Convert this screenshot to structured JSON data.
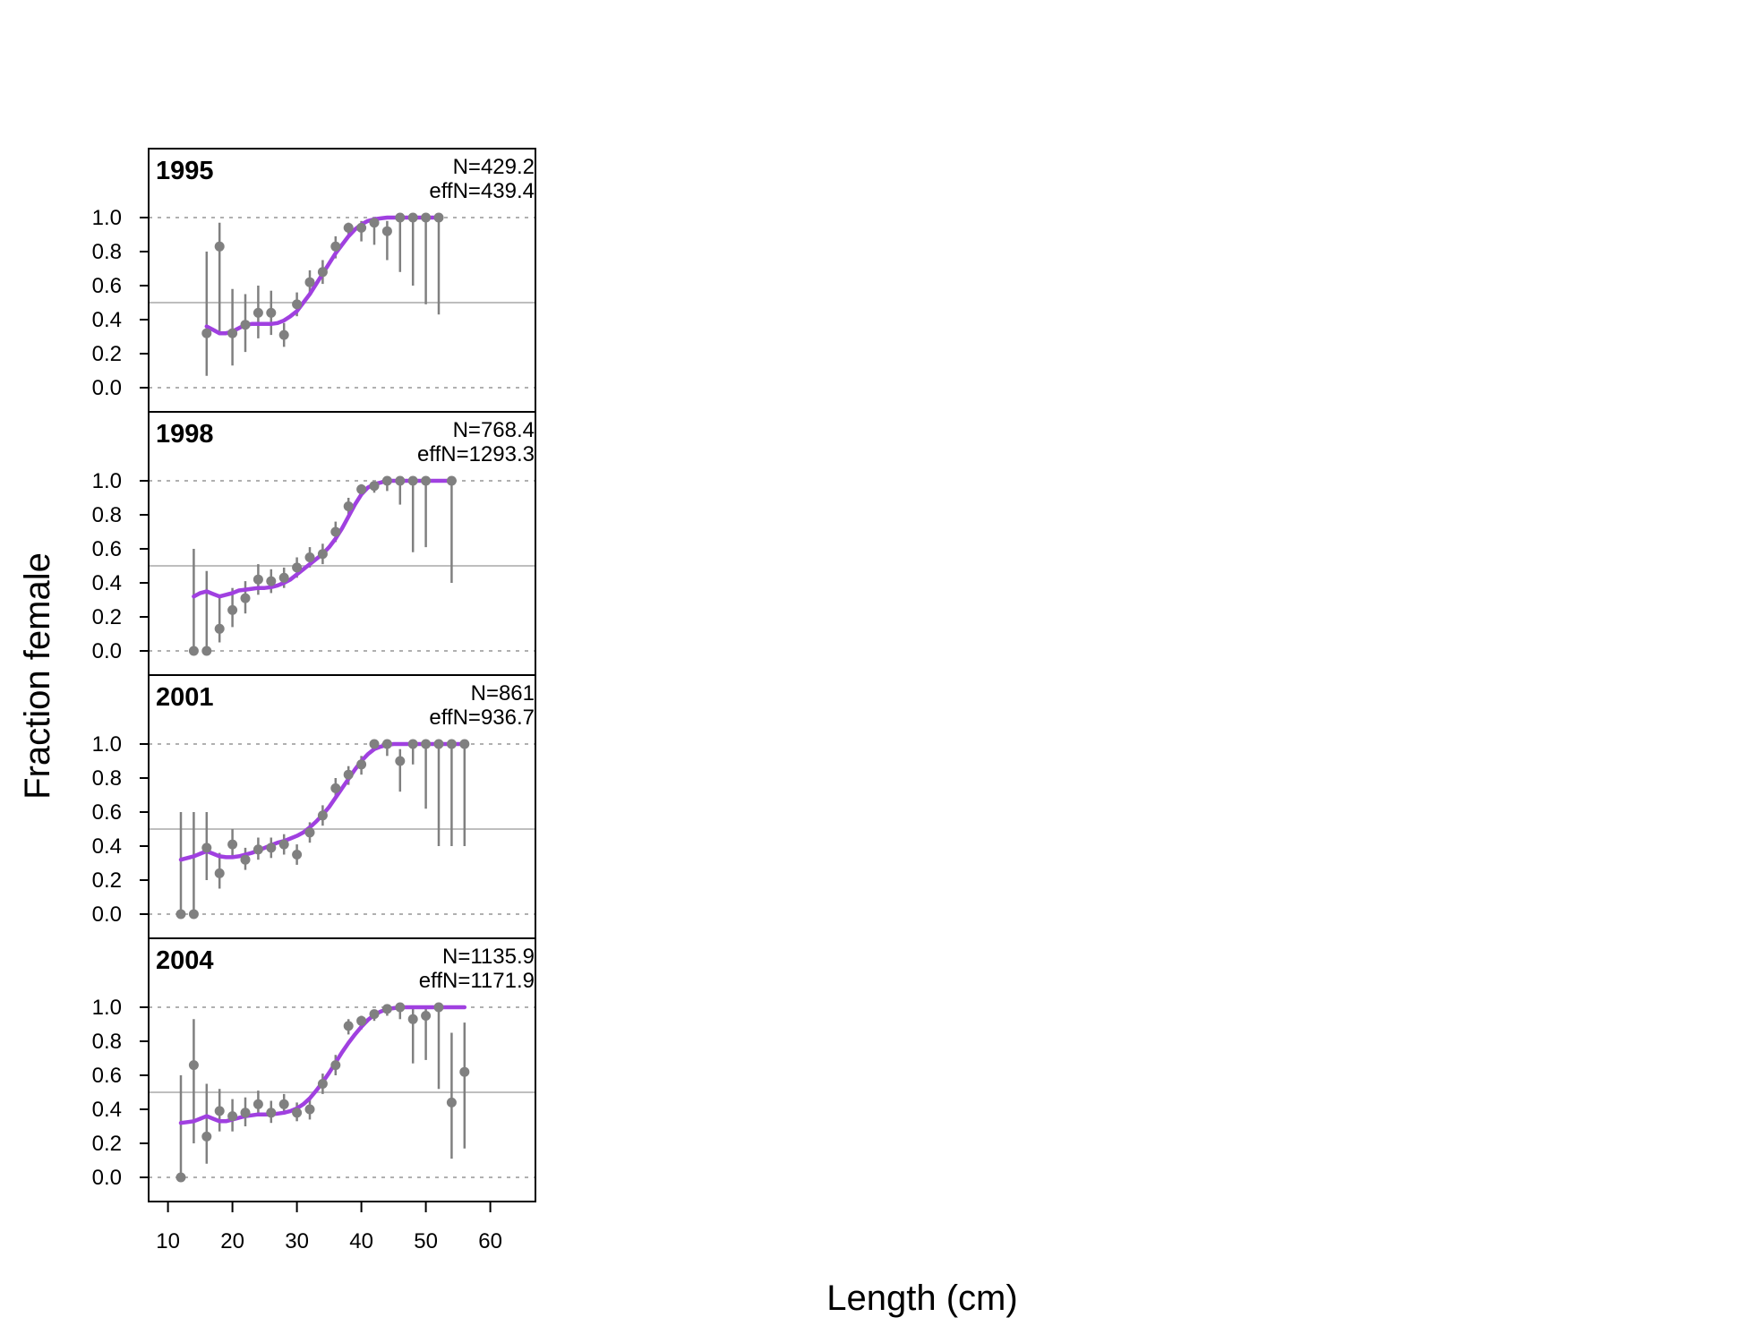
{
  "chart_data": {
    "type": "scatter",
    "xlabel": "Length (cm)",
    "ylabel": "Fraction female",
    "xlim": [
      7,
      67
    ],
    "ylim": [
      -0.15,
      1.4
    ],
    "x_ticks": [
      10,
      20,
      30,
      40,
      50,
      60
    ],
    "y_ticks": [
      0.0,
      0.2,
      0.4,
      0.6,
      0.8,
      1.0
    ],
    "y_tick_labels": [
      "0.0",
      "0.2",
      "0.4",
      "0.6",
      "0.8",
      "1.0"
    ],
    "reference_line": 0.5,
    "grid_lines": [
      0.0,
      1.0
    ],
    "colors": {
      "observed": "#808080",
      "expected": "#a040e0",
      "reference": "#bebebe",
      "grid": "#b0b0b0"
    },
    "panels": [
      {
        "year": "1995",
        "n_label": "N=429.2",
        "effn_label": "effN=439.4",
        "observed": [
          {
            "x": 16,
            "y": 0.32,
            "lo": 0.07,
            "hi": 0.8
          },
          {
            "x": 18,
            "y": 0.83,
            "lo": 0.33,
            "hi": 0.97
          },
          {
            "x": 20,
            "y": 0.32,
            "lo": 0.13,
            "hi": 0.58
          },
          {
            "x": 22,
            "y": 0.37,
            "lo": 0.21,
            "hi": 0.55
          },
          {
            "x": 24,
            "y": 0.44,
            "lo": 0.29,
            "hi": 0.6
          },
          {
            "x": 26,
            "y": 0.44,
            "lo": 0.31,
            "hi": 0.57
          },
          {
            "x": 28,
            "y": 0.31,
            "lo": 0.24,
            "hi": 0.38
          },
          {
            "x": 30,
            "y": 0.49,
            "lo": 0.42,
            "hi": 0.56
          },
          {
            "x": 32,
            "y": 0.62,
            "lo": 0.55,
            "hi": 0.69
          },
          {
            "x": 34,
            "y": 0.68,
            "lo": 0.61,
            "hi": 0.75
          },
          {
            "x": 36,
            "y": 0.83,
            "lo": 0.76,
            "hi": 0.89
          },
          {
            "x": 38,
            "y": 0.94,
            "lo": 0.89,
            "hi": 0.97
          },
          {
            "x": 40,
            "y": 0.94,
            "lo": 0.86,
            "hi": 0.98
          },
          {
            "x": 42,
            "y": 0.97,
            "lo": 0.84,
            "hi": 0.99
          },
          {
            "x": 44,
            "y": 0.92,
            "lo": 0.75,
            "hi": 0.98
          },
          {
            "x": 46,
            "y": 1.0,
            "lo": 0.68,
            "hi": 1.0
          },
          {
            "x": 48,
            "y": 1.0,
            "lo": 0.6,
            "hi": 1.0
          },
          {
            "x": 50,
            "y": 1.0,
            "lo": 0.49,
            "hi": 1.0
          },
          {
            "x": 52,
            "y": 1.0,
            "lo": 0.43,
            "hi": 1.0
          }
        ],
        "expected": {
          "x": [
            16,
            17,
            18,
            19,
            20,
            21,
            22,
            23,
            24,
            25,
            26,
            27,
            28,
            29,
            30,
            31,
            32,
            33,
            34,
            35,
            36,
            37,
            38,
            39,
            40,
            41,
            42,
            43,
            44,
            45,
            46,
            47,
            48,
            49,
            50,
            51,
            52
          ],
          "y": [
            0.36,
            0.34,
            0.32,
            0.32,
            0.33,
            0.35,
            0.37,
            0.375,
            0.375,
            0.375,
            0.375,
            0.38,
            0.395,
            0.42,
            0.45,
            0.5,
            0.55,
            0.61,
            0.67,
            0.73,
            0.79,
            0.84,
            0.89,
            0.93,
            0.96,
            0.98,
            0.99,
            0.995,
            1.0,
            1.0,
            1.0,
            1.0,
            1.0,
            1.0,
            1.0,
            1.0,
            1.0
          ]
        }
      },
      {
        "year": "1998",
        "n_label": "N=768.4",
        "effn_label": "effN=1293.3",
        "observed": [
          {
            "x": 14,
            "y": 0.0,
            "lo": 0.0,
            "hi": 0.6
          },
          {
            "x": 16,
            "y": 0.0,
            "lo": 0.0,
            "hi": 0.47
          },
          {
            "x": 18,
            "y": 0.13,
            "lo": 0.05,
            "hi": 0.32
          },
          {
            "x": 20,
            "y": 0.24,
            "lo": 0.14,
            "hi": 0.37
          },
          {
            "x": 22,
            "y": 0.31,
            "lo": 0.22,
            "hi": 0.41
          },
          {
            "x": 24,
            "y": 0.42,
            "lo": 0.33,
            "hi": 0.51
          },
          {
            "x": 26,
            "y": 0.41,
            "lo": 0.34,
            "hi": 0.48
          },
          {
            "x": 28,
            "y": 0.43,
            "lo": 0.37,
            "hi": 0.49
          },
          {
            "x": 30,
            "y": 0.49,
            "lo": 0.43,
            "hi": 0.55
          },
          {
            "x": 32,
            "y": 0.55,
            "lo": 0.49,
            "hi": 0.61
          },
          {
            "x": 34,
            "y": 0.57,
            "lo": 0.51,
            "hi": 0.63
          },
          {
            "x": 36,
            "y": 0.7,
            "lo": 0.64,
            "hi": 0.76
          },
          {
            "x": 38,
            "y": 0.85,
            "lo": 0.79,
            "hi": 0.9
          },
          {
            "x": 40,
            "y": 0.95,
            "lo": 0.91,
            "hi": 0.98
          },
          {
            "x": 42,
            "y": 0.97,
            "lo": 0.93,
            "hi": 0.99
          },
          {
            "x": 44,
            "y": 1.0,
            "lo": 0.94,
            "hi": 1.0
          },
          {
            "x": 46,
            "y": 1.0,
            "lo": 0.86,
            "hi": 1.0
          },
          {
            "x": 48,
            "y": 1.0,
            "lo": 0.58,
            "hi": 1.0
          },
          {
            "x": 50,
            "y": 1.0,
            "lo": 0.61,
            "hi": 1.0
          },
          {
            "x": 54,
            "y": 1.0,
            "lo": 0.4,
            "hi": 1.0
          }
        ],
        "expected": {
          "x": [
            14,
            15,
            16,
            17,
            18,
            19,
            20,
            21,
            22,
            23,
            24,
            25,
            26,
            27,
            28,
            29,
            30,
            31,
            32,
            33,
            34,
            35,
            36,
            37,
            38,
            39,
            40,
            41,
            42,
            43,
            44,
            45,
            46,
            47,
            48,
            49,
            50,
            51,
            52,
            53,
            54
          ],
          "y": [
            0.32,
            0.34,
            0.35,
            0.335,
            0.32,
            0.33,
            0.34,
            0.355,
            0.36,
            0.365,
            0.37,
            0.37,
            0.375,
            0.385,
            0.4,
            0.42,
            0.45,
            0.48,
            0.51,
            0.54,
            0.57,
            0.61,
            0.66,
            0.72,
            0.79,
            0.86,
            0.92,
            0.96,
            0.98,
            0.99,
            1.0,
            1.0,
            1.0,
            1.0,
            1.0,
            1.0,
            1.0,
            1.0,
            1.0,
            1.0,
            1.0
          ]
        }
      },
      {
        "year": "2001",
        "n_label": "N=861",
        "effn_label": "effN=936.7",
        "observed": [
          {
            "x": 12,
            "y": 0.0,
            "lo": 0.0,
            "hi": 0.6
          },
          {
            "x": 14,
            "y": 0.0,
            "lo": 0.0,
            "hi": 0.6
          },
          {
            "x": 16,
            "y": 0.39,
            "lo": 0.2,
            "hi": 0.6
          },
          {
            "x": 18,
            "y": 0.24,
            "lo": 0.15,
            "hi": 0.36
          },
          {
            "x": 20,
            "y": 0.41,
            "lo": 0.33,
            "hi": 0.5
          },
          {
            "x": 22,
            "y": 0.32,
            "lo": 0.26,
            "hi": 0.39
          },
          {
            "x": 24,
            "y": 0.38,
            "lo": 0.32,
            "hi": 0.45
          },
          {
            "x": 26,
            "y": 0.39,
            "lo": 0.33,
            "hi": 0.45
          },
          {
            "x": 28,
            "y": 0.41,
            "lo": 0.35,
            "hi": 0.47
          },
          {
            "x": 30,
            "y": 0.35,
            "lo": 0.29,
            "hi": 0.41
          },
          {
            "x": 32,
            "y": 0.48,
            "lo": 0.42,
            "hi": 0.54
          },
          {
            "x": 34,
            "y": 0.58,
            "lo": 0.52,
            "hi": 0.64
          },
          {
            "x": 36,
            "y": 0.74,
            "lo": 0.68,
            "hi": 0.8
          },
          {
            "x": 38,
            "y": 0.82,
            "lo": 0.76,
            "hi": 0.87
          },
          {
            "x": 40,
            "y": 0.88,
            "lo": 0.82,
            "hi": 0.93
          },
          {
            "x": 42,
            "y": 1.0,
            "lo": 0.96,
            "hi": 1.0
          },
          {
            "x": 44,
            "y": 1.0,
            "lo": 0.93,
            "hi": 1.0
          },
          {
            "x": 46,
            "y": 0.9,
            "lo": 0.72,
            "hi": 0.97
          },
          {
            "x": 48,
            "y": 1.0,
            "lo": 0.88,
            "hi": 1.0
          },
          {
            "x": 50,
            "y": 1.0,
            "lo": 0.62,
            "hi": 1.0
          },
          {
            "x": 52,
            "y": 1.0,
            "lo": 0.4,
            "hi": 1.0
          },
          {
            "x": 54,
            "y": 1.0,
            "lo": 0.4,
            "hi": 1.0
          },
          {
            "x": 56,
            "y": 1.0,
            "lo": 0.4,
            "hi": 1.0
          }
        ],
        "expected": {
          "x": [
            12,
            13,
            14,
            15,
            16,
            17,
            18,
            19,
            20,
            21,
            22,
            23,
            24,
            25,
            26,
            27,
            28,
            29,
            30,
            31,
            32,
            33,
            34,
            35,
            36,
            37,
            38,
            39,
            40,
            41,
            42,
            43,
            44,
            45,
            46,
            47,
            48,
            49,
            50,
            51,
            52,
            53,
            54,
            55,
            56
          ],
          "y": [
            0.32,
            0.33,
            0.34,
            0.355,
            0.37,
            0.355,
            0.34,
            0.335,
            0.335,
            0.34,
            0.35,
            0.36,
            0.375,
            0.39,
            0.405,
            0.42,
            0.43,
            0.445,
            0.46,
            0.48,
            0.51,
            0.545,
            0.585,
            0.63,
            0.685,
            0.74,
            0.795,
            0.85,
            0.9,
            0.94,
            0.97,
            0.985,
            0.995,
            1.0,
            1.0,
            1.0,
            1.0,
            1.0,
            1.0,
            1.0,
            1.0,
            1.0,
            1.0,
            1.0,
            1.0
          ]
        }
      },
      {
        "year": "2004",
        "n_label": "N=1135.9",
        "effn_label": "effN=1171.9",
        "observed": [
          {
            "x": 12,
            "y": 0.0,
            "lo": 0.0,
            "hi": 0.6
          },
          {
            "x": 14,
            "y": 0.66,
            "lo": 0.2,
            "hi": 0.93
          },
          {
            "x": 16,
            "y": 0.24,
            "lo": 0.08,
            "hi": 0.55
          },
          {
            "x": 18,
            "y": 0.39,
            "lo": 0.27,
            "hi": 0.52
          },
          {
            "x": 20,
            "y": 0.36,
            "lo": 0.27,
            "hi": 0.46
          },
          {
            "x": 22,
            "y": 0.38,
            "lo": 0.3,
            "hi": 0.47
          },
          {
            "x": 24,
            "y": 0.43,
            "lo": 0.36,
            "hi": 0.51
          },
          {
            "x": 26,
            "y": 0.38,
            "lo": 0.32,
            "hi": 0.45
          },
          {
            "x": 28,
            "y": 0.43,
            "lo": 0.37,
            "hi": 0.49
          },
          {
            "x": 30,
            "y": 0.38,
            "lo": 0.33,
            "hi": 0.44
          },
          {
            "x": 32,
            "y": 0.4,
            "lo": 0.34,
            "hi": 0.46
          },
          {
            "x": 34,
            "y": 0.55,
            "lo": 0.49,
            "hi": 0.61
          },
          {
            "x": 36,
            "y": 0.66,
            "lo": 0.6,
            "hi": 0.72
          },
          {
            "x": 38,
            "y": 0.89,
            "lo": 0.84,
            "hi": 0.93
          },
          {
            "x": 40,
            "y": 0.92,
            "lo": 0.87,
            "hi": 0.95
          },
          {
            "x": 42,
            "y": 0.96,
            "lo": 0.92,
            "hi": 0.98
          },
          {
            "x": 44,
            "y": 0.99,
            "lo": 0.95,
            "hi": 1.0
          },
          {
            "x": 46,
            "y": 1.0,
            "lo": 0.93,
            "hi": 1.0
          },
          {
            "x": 48,
            "y": 0.93,
            "lo": 0.67,
            "hi": 0.99
          },
          {
            "x": 50,
            "y": 0.95,
            "lo": 0.69,
            "hi": 0.99
          },
          {
            "x": 52,
            "y": 1.0,
            "lo": 0.52,
            "hi": 1.0
          },
          {
            "x": 54,
            "y": 0.44,
            "lo": 0.11,
            "hi": 0.85
          },
          {
            "x": 56,
            "y": 0.62,
            "lo": 0.17,
            "hi": 0.91
          }
        ],
        "expected": {
          "x": [
            12,
            13,
            14,
            15,
            16,
            17,
            18,
            19,
            20,
            21,
            22,
            23,
            24,
            25,
            26,
            27,
            28,
            29,
            30,
            31,
            32,
            33,
            34,
            35,
            36,
            37,
            38,
            39,
            40,
            41,
            42,
            43,
            44,
            45,
            46,
            47,
            48,
            49,
            50,
            51,
            52,
            53,
            54,
            55,
            56
          ],
          "y": [
            0.32,
            0.325,
            0.33,
            0.345,
            0.36,
            0.345,
            0.33,
            0.33,
            0.34,
            0.35,
            0.36,
            0.365,
            0.37,
            0.37,
            0.37,
            0.375,
            0.38,
            0.39,
            0.405,
            0.43,
            0.465,
            0.51,
            0.56,
            0.615,
            0.675,
            0.735,
            0.79,
            0.84,
            0.885,
            0.925,
            0.955,
            0.975,
            0.99,
            0.995,
            1.0,
            1.0,
            1.0,
            1.0,
            1.0,
            1.0,
            1.0,
            1.0,
            1.0,
            1.0,
            1.0
          ]
        }
      }
    ]
  }
}
